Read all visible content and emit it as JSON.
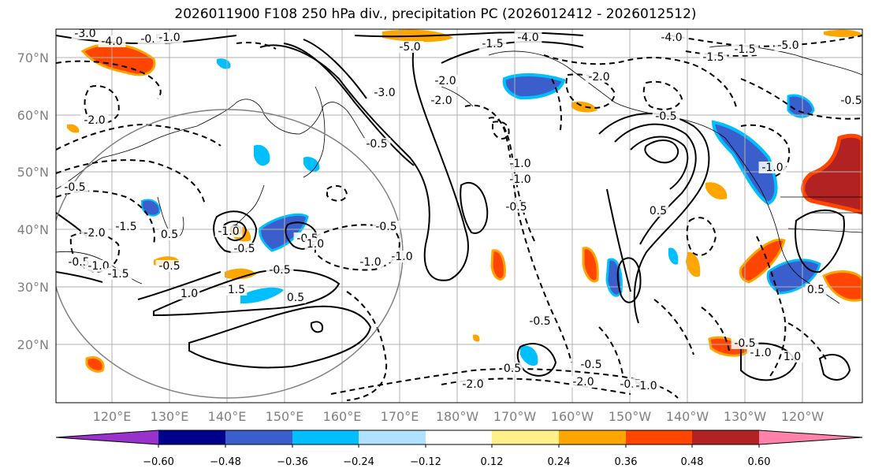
{
  "title": "2026011900 F108 250 hPa div., precipitation PC (2026012412 - 2026012512)",
  "map": {
    "lat_labels": [
      "70°N",
      "60°N",
      "50°N",
      "40°N",
      "30°N",
      "20°N"
    ],
    "lon_labels": [
      "120°E",
      "130°E",
      "140°E",
      "150°E",
      "160°E",
      "170°E",
      "180°W",
      "170°W",
      "160°W",
      "150°W",
      "140°W",
      "130°W",
      "120°W"
    ],
    "contour_labels": [
      "-3.0",
      "-4.0",
      "-0.5",
      "-1.0",
      "-4.0",
      "-5.0",
      "-3.0",
      "-2.0",
      "-1.5",
      "-2.0",
      "-0.5",
      "-1.0",
      "-4.0",
      "-2.0",
      "-5.0",
      "-1.5",
      "-0.5",
      "-1.0",
      "-0.5",
      "-1.5",
      "-2.0",
      "-0.5",
      "-2.0",
      "-1.5",
      "-0.5",
      "-1.0",
      "0.5",
      "-1.0",
      "-0.5",
      "-0.5",
      "-0.5",
      "1.5",
      "1.0",
      "-1.5",
      "0.5",
      "-0.5",
      "1.0",
      "-1.0",
      "-1.0",
      "-0.5",
      "-1.0",
      "-0.5",
      "-0.5",
      "0.5",
      "-0.5",
      "0.5",
      "-0.5",
      "-2.0",
      "-2.0",
      "-1.0",
      "-1.0",
      "-0.5",
      "1.0",
      "0.5"
    ],
    "circle_center": {
      "lon": 140,
      "lat": 36
    },
    "colors": {
      "grid": "#b0b0b0",
      "axis": "#000000",
      "circle": "#808080"
    }
  },
  "colorbar": {
    "ticks": [
      "−0.60",
      "−0.48",
      "−0.36",
      "−0.24",
      "−0.12",
      "0.12",
      "0.24",
      "0.36",
      "0.48",
      "0.60"
    ],
    "colors": [
      "#9932cc",
      "#00008b",
      "#3a5fcd",
      "#00bfff",
      "#b0e2ff",
      "#ffffff",
      "#fff08a",
      "#ffa500",
      "#ff4500",
      "#b22222",
      "#ff82ab"
    ]
  }
}
